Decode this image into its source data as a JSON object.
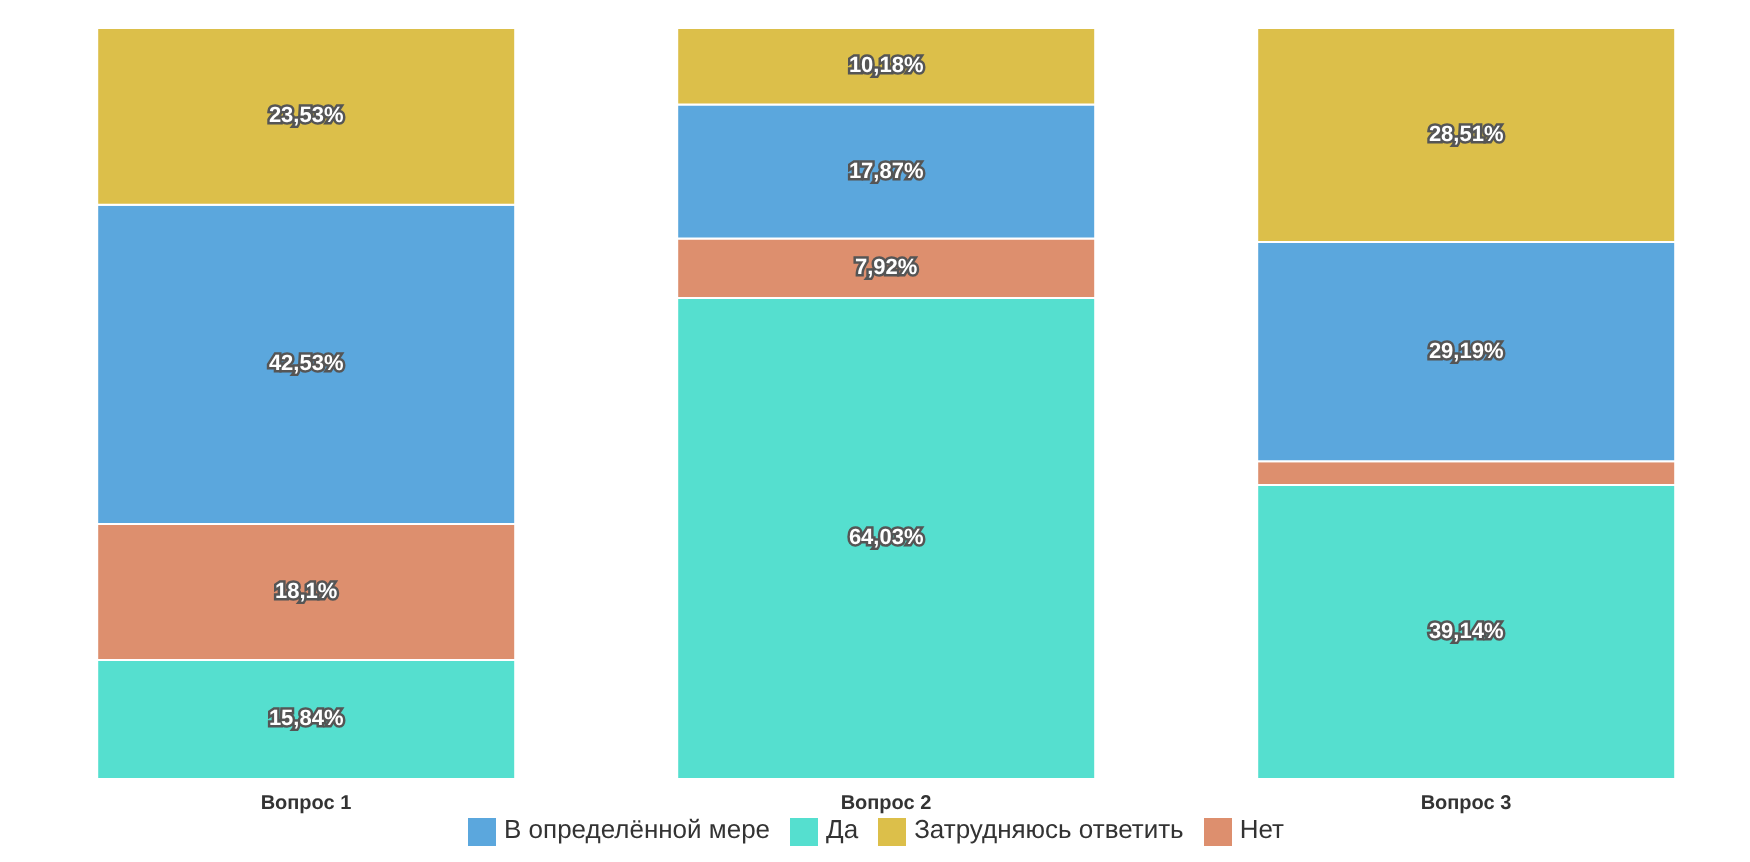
{
  "chart_data": {
    "type": "bar",
    "stacked": true,
    "categories": [
      "Вопрос 1",
      "Вопрос 2",
      "Вопрос 3"
    ],
    "series": [
      {
        "name": "Да",
        "color": "#55dfcf",
        "values": [
          15.84,
          64.03,
          39.14
        ],
        "value_labels": [
          "15,84%",
          "64,03%",
          "39,14%"
        ]
      },
      {
        "name": "Нет",
        "color": "#dd8f6e",
        "values": [
          18.1,
          7.92,
          3.16
        ],
        "value_labels": [
          "18,1%",
          "7,92%",
          null
        ]
      },
      {
        "name": "В определённой мере",
        "color": "#5ba7dd",
        "values": [
          42.53,
          17.87,
          29.19
        ],
        "value_labels": [
          "42,53%",
          "17,87%",
          "29,19%"
        ]
      },
      {
        "name": "Затрудняюсь ответить",
        "color": "#dcbf4a",
        "values": [
          23.53,
          10.18,
          28.51
        ],
        "value_labels": [
          "23,53%",
          "10,18%",
          "28,51%"
        ]
      }
    ],
    "ylim": [
      0,
      100
    ],
    "tick_labels": "x",
    "grid": false,
    "legend": "bottom"
  }
}
